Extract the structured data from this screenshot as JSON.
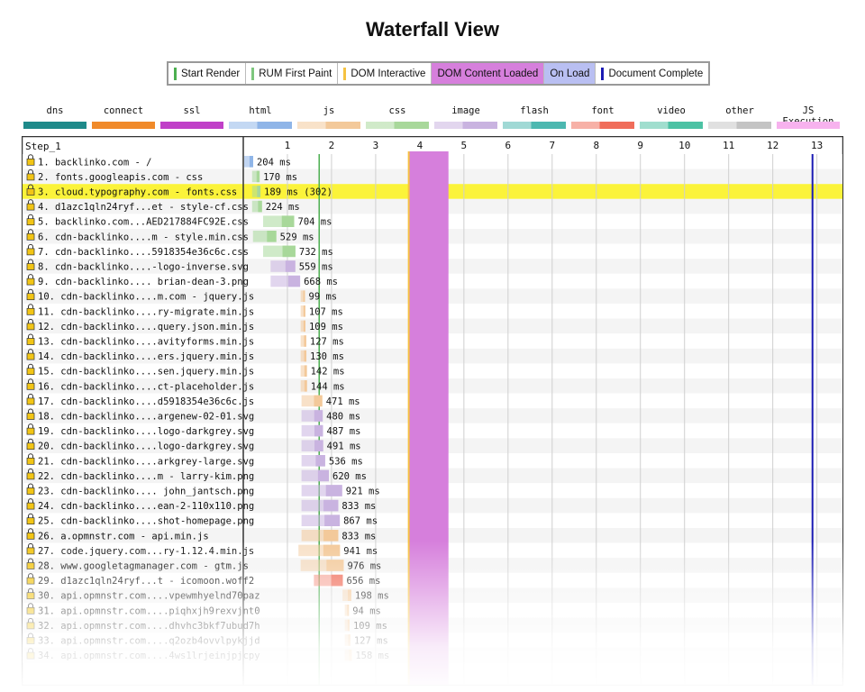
{
  "title": "Waterfall View",
  "events": [
    {
      "label": "Start Render",
      "color": "#4caf50",
      "kind": "line"
    },
    {
      "label": "RUM First Paint",
      "color": "#7ec77e",
      "kind": "line"
    },
    {
      "label": "DOM Interactive",
      "color": "#f5c242",
      "kind": "line"
    },
    {
      "label": "DOM Content Loaded",
      "color": "#d67fdc",
      "kind": "box"
    },
    {
      "label": "On Load",
      "color": "#b9bff2",
      "kind": "box"
    },
    {
      "label": "Document Complete",
      "color": "#1b1bb4",
      "kind": "line"
    }
  ],
  "types": [
    {
      "label": "dns",
      "color": "#1e8a8a"
    },
    {
      "label": "connect",
      "color": "#f08a2a"
    },
    {
      "label": "ssl",
      "color": "#c040c8"
    },
    {
      "label": "html",
      "color": "#8fb5e8"
    },
    {
      "label": "js",
      "color": "#f3c99a"
    },
    {
      "label": "css",
      "color": "#a8d89a"
    },
    {
      "label": "image",
      "color": "#c9b3e0"
    },
    {
      "label": "flash",
      "color": "#4cb8b0"
    },
    {
      "label": "font",
      "color": "#f06d5a"
    },
    {
      "label": "video",
      "color": "#4cc2a4"
    },
    {
      "label": "other",
      "color": "#c4c4c4"
    },
    {
      "label": "JS Execution",
      "color": "#f7b2ee"
    }
  ],
  "chart_data": {
    "type": "waterfall",
    "step_label": "Step_1",
    "x_ticks": [
      1,
      2,
      3,
      4,
      5,
      6,
      7,
      8,
      9,
      10,
      11,
      12,
      13
    ],
    "xlim": [
      0,
      13.6
    ],
    "x_unit": "s",
    "markers": {
      "start_render": 1.72,
      "dom_interactive": 3.75,
      "dom_content_loaded": [
        3.75,
        4.65
      ],
      "document_complete": 12.9
    },
    "rows": [
      {
        "label": "1. backlinko.com - /",
        "start": 0.02,
        "duration": 0.204,
        "type": "html",
        "time_label": "204 ms"
      },
      {
        "label": "2. fonts.googleapis.com - css",
        "start": 0.2,
        "duration": 0.17,
        "type": "css",
        "time_label": "170 ms"
      },
      {
        "label": "3. cloud.typography.com - fonts.css",
        "start": 0.2,
        "duration": 0.189,
        "type": "css",
        "time_label": "189 ms (302)",
        "highlight": true
      },
      {
        "label": "4. d1azc1qln24ryf...et - style-cf.css",
        "start": 0.2,
        "duration": 0.224,
        "type": "css",
        "time_label": "224 ms"
      },
      {
        "label": "5. backlinko.com...AED217884FC92E.css",
        "start": 0.45,
        "duration": 0.704,
        "type": "css",
        "time_label": "704 ms"
      },
      {
        "label": "6. cdn-backlinko....m - style.min.css",
        "start": 0.22,
        "duration": 0.529,
        "type": "css",
        "time_label": "529 ms"
      },
      {
        "label": "7. cdn-backlinko....5918354e36c6c.css",
        "start": 0.45,
        "duration": 0.732,
        "type": "css",
        "time_label": "732 ms"
      },
      {
        "label": "8. cdn-backlinko....-logo-inverse.svg",
        "start": 0.62,
        "duration": 0.559,
        "type": "image",
        "time_label": "559 ms"
      },
      {
        "label": "9. cdn-backlinko.... brian-dean-3.png",
        "start": 0.62,
        "duration": 0.668,
        "type": "image",
        "time_label": "668 ms"
      },
      {
        "label": "10. cdn-backlinko....m.com - jquery.js",
        "start": 1.3,
        "duration": 0.099,
        "type": "js",
        "time_label": "99 ms"
      },
      {
        "label": "11. cdn-backlinko....ry-migrate.min.js",
        "start": 1.3,
        "duration": 0.107,
        "type": "js",
        "time_label": "107 ms"
      },
      {
        "label": "12. cdn-backlinko....query.json.min.js",
        "start": 1.3,
        "duration": 0.109,
        "type": "js",
        "time_label": "109 ms"
      },
      {
        "label": "13. cdn-backlinko....avityforms.min.js",
        "start": 1.3,
        "duration": 0.127,
        "type": "js",
        "time_label": "127 ms"
      },
      {
        "label": "14. cdn-backlinko....ers.jquery.min.js",
        "start": 1.3,
        "duration": 0.13,
        "type": "js",
        "time_label": "130 ms"
      },
      {
        "label": "15. cdn-backlinko....sen.jquery.min.js",
        "start": 1.3,
        "duration": 0.142,
        "type": "js",
        "time_label": "142 ms"
      },
      {
        "label": "16. cdn-backlinko....ct-placeholder.js",
        "start": 1.3,
        "duration": 0.144,
        "type": "js",
        "time_label": "144 ms"
      },
      {
        "label": "17. cdn-backlinko....d5918354e36c6c.js",
        "start": 1.32,
        "duration": 0.471,
        "type": "js",
        "time_label": "471 ms"
      },
      {
        "label": "18. cdn-backlinko....argenew-02-01.svg",
        "start": 1.32,
        "duration": 0.48,
        "type": "image",
        "time_label": "480 ms"
      },
      {
        "label": "19. cdn-backlinko....logo-darkgrey.svg",
        "start": 1.32,
        "duration": 0.487,
        "type": "image",
        "time_label": "487 ms"
      },
      {
        "label": "20. cdn-backlinko....logo-darkgrey.svg",
        "start": 1.32,
        "duration": 0.491,
        "type": "image",
        "time_label": "491 ms"
      },
      {
        "label": "21. cdn-backlinko....arkgrey-large.svg",
        "start": 1.32,
        "duration": 0.536,
        "type": "image",
        "time_label": "536 ms"
      },
      {
        "label": "22. cdn-backlinko....m - larry-kim.png",
        "start": 1.32,
        "duration": 0.62,
        "type": "image",
        "time_label": "620 ms"
      },
      {
        "label": "23. cdn-backlinko.... john_jantsch.png",
        "start": 1.32,
        "duration": 0.921,
        "type": "image",
        "time_label": "921 ms"
      },
      {
        "label": "24. cdn-backlinko....ean-2-110x110.png",
        "start": 1.32,
        "duration": 0.833,
        "type": "image",
        "time_label": "833 ms"
      },
      {
        "label": "25. cdn-backlinko....shot-homepage.png",
        "start": 1.32,
        "duration": 0.867,
        "type": "image",
        "time_label": "867 ms"
      },
      {
        "label": "26. a.opmnstr.com - api.min.js",
        "start": 1.32,
        "duration": 0.833,
        "type": "js",
        "time_label": "833 ms"
      },
      {
        "label": "27. code.jquery.com...ry-1.12.4.min.js",
        "start": 1.25,
        "duration": 0.941,
        "type": "js",
        "time_label": "941 ms"
      },
      {
        "label": "28. www.googletagmanager.com - gtm.js",
        "start": 1.3,
        "duration": 0.976,
        "type": "js",
        "time_label": "976 ms"
      },
      {
        "label": "29. d1azc1qln24ryf...t - icomoon.woff2",
        "start": 1.6,
        "duration": 0.656,
        "type": "font",
        "time_label": "656 ms"
      },
      {
        "label": "30. api.opmnstr.com....vpewmhyelnd70paz",
        "start": 2.25,
        "duration": 0.198,
        "type": "js",
        "time_label": "198 ms"
      },
      {
        "label": "31. api.opmnstr.com....piqhxjh9rexvjnt0",
        "start": 2.3,
        "duration": 0.094,
        "type": "js",
        "time_label": "94 ms"
      },
      {
        "label": "32. api.opmnstr.com....dhvhc3bkf7ubud7h",
        "start": 2.3,
        "duration": 0.109,
        "type": "js",
        "time_label": "109 ms"
      },
      {
        "label": "33. api.opmnstr.com....q2ozb4ovvlpykjjd",
        "start": 2.3,
        "duration": 0.127,
        "type": "js",
        "time_label": "127 ms"
      },
      {
        "label": "34. api.opmnstr.com....4ws1lrjeinjpjcpy",
        "start": 2.3,
        "duration": 0.158,
        "type": "js",
        "time_label": "158 ms"
      }
    ]
  }
}
